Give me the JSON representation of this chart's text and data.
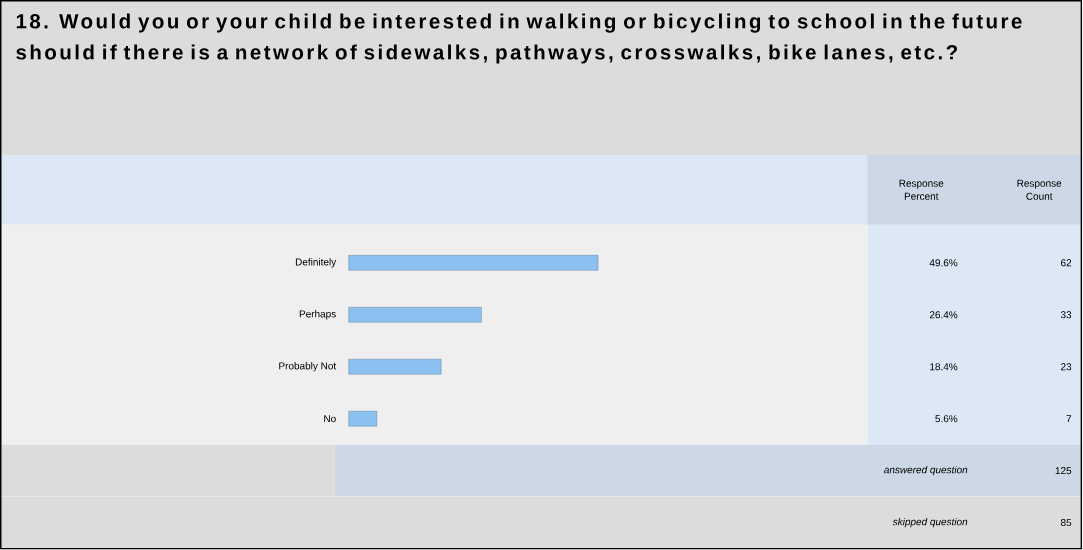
{
  "chart_data": {
    "type": "bar",
    "orientation": "horizontal",
    "title": "18. Would you or your child be interested in walking or bicycling to school in the future should if there is a network of sidewalks, pathways, crosswalks, bike lanes, etc.?",
    "categories": [
      "Definitely",
      "Perhaps",
      "Probably Not",
      "No"
    ],
    "values": [
      49.6,
      26.4,
      18.4,
      5.6
    ],
    "value_labels": [
      "49.6%",
      "26.4%",
      "18.4%",
      "5.6%"
    ],
    "color": "#8cc0f0",
    "annotations": [
      "Response Percent",
      "Response Count",
      "62",
      "33",
      "23",
      "7",
      "answered question",
      "125",
      "skipped question",
      "85"
    ]
  }
}
